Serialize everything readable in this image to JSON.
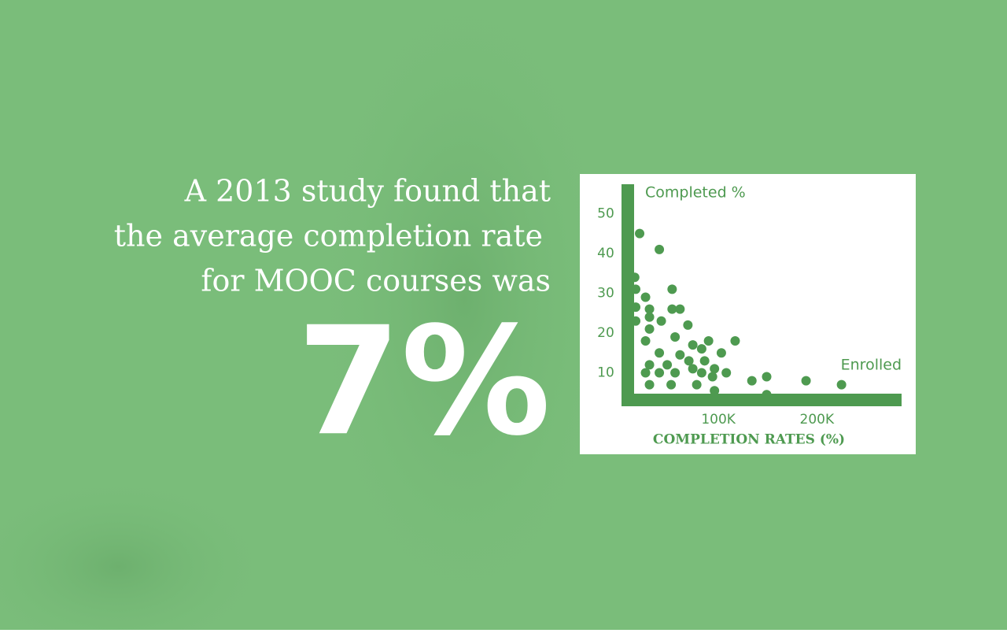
{
  "slide": {
    "headline_lines": [
      "A 2013 study found that",
      "the average completion rate",
      "for MOOC courses was"
    ],
    "stat": "7%"
  },
  "chart_data": {
    "type": "scatter",
    "ylabel": "Completed %",
    "xlabel": "Enrolled",
    "caption": "COMPLETION RATES (%)",
    "color": "#4e9a50",
    "x": [
      20000,
      40000,
      15000,
      16000,
      26000,
      16000,
      30000,
      16000,
      30000,
      42000,
      53000,
      53000,
      61000,
      69000,
      56000,
      30000,
      26000,
      90000,
      117000,
      74000,
      83000,
      103000,
      40000,
      61000,
      30000,
      48000,
      70000,
      86000,
      74000,
      96000,
      40000,
      56000,
      26000,
      83000,
      108000,
      94000,
      149000,
      134000,
      189000,
      30000,
      52000,
      78000,
      96000,
      149000,
      225000
    ],
    "values": [
      45,
      41,
      34,
      31,
      29,
      26.5,
      26,
      23,
      24,
      23,
      31,
      26,
      26,
      22,
      19,
      21,
      18,
      18,
      18,
      17,
      16,
      15,
      15,
      14.5,
      12,
      12,
      13,
      13,
      11,
      11,
      10,
      10,
      10,
      10,
      10,
      9,
      9,
      8,
      8,
      7,
      7,
      7,
      5.5,
      4.5,
      7
    ],
    "xlim": [
      0,
      286000
    ],
    "ylim": [
      0,
      57
    ],
    "xticks": [
      {
        "value": 100000,
        "label": "100K"
      },
      {
        "value": 200000,
        "label": "200K"
      }
    ],
    "yticks": [
      10,
      20,
      30,
      40,
      50
    ]
  }
}
